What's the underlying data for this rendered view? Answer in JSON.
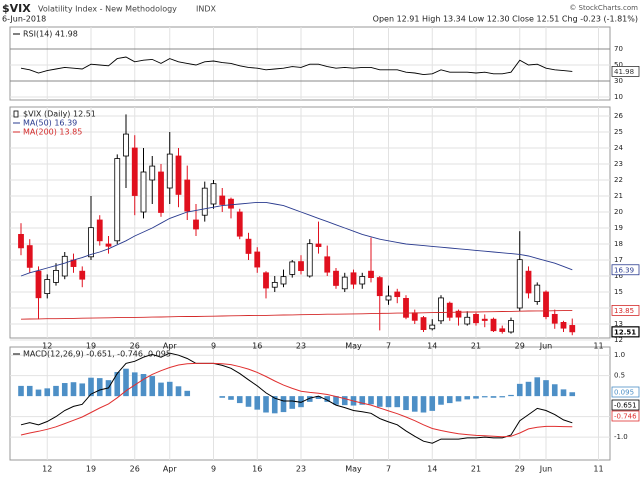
{
  "header": {
    "title": "$VIX",
    "subtitle": "Volatility Index - New Methodology",
    "exchange": "INDX",
    "date": "6-Jun-2018",
    "source": "© StockCharts.com",
    "quote": "Open 12.91 High 13.34 Low 12.30 Close 12.51 Chg -0.23 (-1.81%)"
  },
  "chart_data": [
    {
      "type": "line",
      "ylim": [
        6.25,
        97.5
      ],
      "yticks": [
        10,
        30,
        50,
        70
      ],
      "levels": [
        30,
        70
      ],
      "grid": true,
      "series": [
        {
          "label": "RSI(14) 41.98",
          "color": "#000000",
          "values": [
            46,
            44,
            40,
            43,
            45,
            47,
            46,
            45,
            51,
            50,
            49,
            58,
            60,
            54,
            56,
            57,
            52,
            58,
            54,
            52,
            50,
            54,
            55,
            53,
            52,
            49,
            47,
            46,
            44,
            45,
            46,
            48,
            47,
            51,
            51,
            48,
            46,
            47,
            46,
            47,
            47,
            44,
            44,
            44,
            41,
            40,
            38,
            39,
            44,
            41,
            41,
            41,
            40,
            41,
            39,
            39,
            41,
            56,
            50,
            51,
            46,
            44,
            43,
            41.98
          ]
        }
      ]
    },
    {
      "type": "candlestick",
      "label": "$VIX (Daily) 12.51",
      "xlim": [
        -1.257,
        67.314
      ],
      "xticks": [
        {
          "value": 3,
          "label": "12"
        },
        {
          "value": 8,
          "label": "19"
        },
        {
          "value": 13,
          "label": "26"
        },
        {
          "value": 17,
          "label": "Apr"
        },
        {
          "value": 22,
          "label": "9"
        },
        {
          "value": 27,
          "label": "16"
        },
        {
          "value": 32,
          "label": "23"
        },
        {
          "value": 38,
          "label": "May"
        },
        {
          "value": 42,
          "label": "7"
        },
        {
          "value": 47,
          "label": "14"
        },
        {
          "value": 52,
          "label": "21"
        },
        {
          "value": 57,
          "label": "29"
        },
        {
          "value": 60,
          "label": "Jun"
        },
        {
          "value": 66,
          "label": "11"
        }
      ],
      "ylim": [
        12.125,
        26.5625
      ],
      "yticks": [
        12,
        13,
        14,
        15,
        16,
        17,
        18,
        19,
        20,
        21,
        22,
        23,
        24,
        25,
        26
      ],
      "grid": true,
      "up_color": "#000000",
      "down_color": "#e0101e",
      "open": [
        18.6,
        17.9,
        16.3,
        14.9,
        15.6,
        16.0,
        17.0,
        16.3,
        17.2,
        19.5,
        18.0,
        18.2,
        23.5,
        24.0,
        20.0,
        22.0,
        22.5,
        21.5,
        23.5,
        22.0,
        19.5,
        19.8,
        20.5,
        21.0,
        20.8,
        20.0,
        18.3,
        17.5,
        16.2,
        15.3,
        15.5,
        16.1,
        16.9,
        16.0,
        18.0,
        17.2,
        16.3,
        15.2,
        16.2,
        15.5,
        16.3,
        15.9,
        14.5,
        15.0,
        14.6,
        13.7,
        13.4,
        12.7,
        13.2,
        14.3,
        13.8,
        13.0,
        13.6,
        13.3,
        13.3,
        12.7,
        12.5,
        14.0,
        16.3,
        14.4,
        15.0,
        13.6,
        13.1,
        12.91
      ],
      "high": [
        19.3,
        18.3,
        16.6,
        16.1,
        16.8,
        17.5,
        17.4,
        16.6,
        21.0,
        19.8,
        18.5,
        23.6,
        26.1,
        24.8,
        24.0,
        23.5,
        23.0,
        25.0,
        24.0,
        22.9,
        20.5,
        21.9,
        22.0,
        21.5,
        20.9,
        20.2,
        18.7,
        17.8,
        16.3,
        16.0,
        16.4,
        17.0,
        17.3,
        18.3,
        19.4,
        17.9,
        16.5,
        16.2,
        16.4,
        16.2,
        18.4,
        16.0,
        15.4,
        15.2,
        14.8,
        13.9,
        13.5,
        13.3,
        14.8,
        14.4,
        13.9,
        13.8,
        13.7,
        13.6,
        13.4,
        12.9,
        13.4,
        18.8,
        16.6,
        15.6,
        15.1,
        13.9,
        13.2,
        13.34
      ],
      "low": [
        17.3,
        16.2,
        13.3,
        14.6,
        15.4,
        15.8,
        16.2,
        15.3,
        17.0,
        17.9,
        17.4,
        18.0,
        21.5,
        19.8,
        19.6,
        20.5,
        19.7,
        20.5,
        20.3,
        19.5,
        18.5,
        19.4,
        20.2,
        20.0,
        19.6,
        18.3,
        17.0,
        16.2,
        14.6,
        15.0,
        15.3,
        15.9,
        16.1,
        15.9,
        17.4,
        16.0,
        15.2,
        15.0,
        15.2,
        15.2,
        15.6,
        12.6,
        14.2,
        14.3,
        13.3,
        13.0,
        12.5,
        12.6,
        13.0,
        13.2,
        12.9,
        12.9,
        12.9,
        12.8,
        12.5,
        12.4,
        12.4,
        13.8,
        14.6,
        14.2,
        13.3,
        12.7,
        12.5,
        12.3
      ],
      "close": [
        17.76,
        16.54,
        14.64,
        15.78,
        16.35,
        17.23,
        16.59,
        15.8,
        19.02,
        18.2,
        17.86,
        23.34,
        24.87,
        21.03,
        22.5,
        22.87,
        19.97,
        23.62,
        21.1,
        20.06,
        18.94,
        21.49,
        21.77,
        20.47,
        20.24,
        18.49,
        17.41,
        16.56,
        15.25,
        15.6,
        15.96,
        16.88,
        16.34,
        18.02,
        17.84,
        16.24,
        15.41,
        15.93,
        15.49,
        15.97,
        15.9,
        14.77,
        14.75,
        14.71,
        13.42,
        13.23,
        12.65,
        12.93,
        14.63,
        13.42,
        13.43,
        13.42,
        13.08,
        13.22,
        12.58,
        12.53,
        13.22,
        17.02,
        14.94,
        15.43,
        13.46,
        13.05,
        12.74,
        12.51
      ],
      "series": [
        {
          "label": "MA(50) 16.39",
          "color": "#2a3b8f",
          "values": [
            16.0,
            16.2,
            16.35,
            16.5,
            16.65,
            16.8,
            17.0,
            17.15,
            17.35,
            17.5,
            17.7,
            17.95,
            18.2,
            18.5,
            18.75,
            19.0,
            19.3,
            19.6,
            19.8,
            20.0,
            20.1,
            20.2,
            20.3,
            20.4,
            20.45,
            20.5,
            20.55,
            20.6,
            20.6,
            20.5,
            20.4,
            20.2,
            20.0,
            19.8,
            19.6,
            19.4,
            19.2,
            19.0,
            18.8,
            18.6,
            18.45,
            18.3,
            18.2,
            18.1,
            18.0,
            17.95,
            17.9,
            17.85,
            17.8,
            17.75,
            17.7,
            17.65,
            17.6,
            17.55,
            17.5,
            17.45,
            17.4,
            17.35,
            17.25,
            17.1,
            16.95,
            16.8,
            16.6,
            16.39
          ]
        },
        {
          "label": "MA(200) 13.85",
          "color": "#d42a2a",
          "values": [
            13.3,
            13.31,
            13.32,
            13.33,
            13.33,
            13.34,
            13.35,
            13.36,
            13.37,
            13.38,
            13.39,
            13.4,
            13.4,
            13.41,
            13.42,
            13.43,
            13.44,
            13.45,
            13.46,
            13.47,
            13.47,
            13.48,
            13.49,
            13.5,
            13.51,
            13.52,
            13.53,
            13.54,
            13.54,
            13.55,
            13.56,
            13.57,
            13.58,
            13.59,
            13.6,
            13.61,
            13.61,
            13.62,
            13.63,
            13.64,
            13.65,
            13.66,
            13.67,
            13.68,
            13.68,
            13.69,
            13.7,
            13.71,
            13.72,
            13.73,
            13.74,
            13.75,
            13.75,
            13.76,
            13.77,
            13.78,
            13.79,
            13.8,
            13.81,
            13.82,
            13.82,
            13.83,
            13.84,
            13.85
          ]
        }
      ]
    },
    {
      "type": "macd",
      "label": "MACD(12,26,9) -0.651, -0.746, 0.095",
      "ylim": [
        -1.56,
        1.2
      ],
      "yticks": [
        {
          "value": 1,
          "label": "1.0"
        },
        {
          "value": 0.5,
          "label": "0.5"
        },
        {
          "value": -0.5,
          "label": "-0.5"
        },
        {
          "value": -1,
          "label": "-1.0"
        }
      ],
      "grid": true,
      "series": [
        {
          "style": "histogram",
          "color": "#4d8fc6",
          "values": [
            0.25,
            0.25,
            0.16,
            0.19,
            0.25,
            0.32,
            0.34,
            0.31,
            0.45,
            0.44,
            0.39,
            0.59,
            0.67,
            0.58,
            0.54,
            0.49,
            0.33,
            0.35,
            0.24,
            0.13,
            0,
            0,
            0,
            -0.04,
            -0.09,
            -0.17,
            -0.26,
            -0.33,
            -0.4,
            -0.42,
            -0.39,
            -0.31,
            -0.27,
            -0.14,
            -0.07,
            -0.14,
            -0.21,
            -0.22,
            -0.23,
            -0.21,
            -0.2,
            -0.26,
            -0.27,
            -0.27,
            -0.34,
            -0.38,
            -0.4,
            -0.36,
            -0.21,
            -0.17,
            -0.13,
            -0.08,
            -0.06,
            -0.03,
            -0.04,
            -0.03,
            0.03,
            0.3,
            0.35,
            0.46,
            0.39,
            0.29,
            0.165,
            0.095
          ]
        },
        {
          "style": "line",
          "color": "#000000",
          "values": [
            -0.7,
            -0.65,
            -0.7,
            -0.62,
            -0.5,
            -0.35,
            -0.25,
            -0.2,
            0.05,
            0.15,
            0.2,
            0.55,
            0.8,
            0.85,
            0.95,
            1.02,
            0.95,
            1.05,
            1.0,
            0.92,
            0.8,
            0.8,
            0.8,
            0.75,
            0.68,
            0.55,
            0.4,
            0.25,
            0.08,
            -0.05,
            -0.12,
            -0.12,
            -0.15,
            -0.05,
            0.0,
            -0.1,
            -0.22,
            -0.28,
            -0.35,
            -0.38,
            -0.42,
            -0.55,
            -0.63,
            -0.7,
            -0.85,
            -0.98,
            -1.1,
            -1.15,
            -1.05,
            -1.05,
            -1.05,
            -1.02,
            -1.02,
            -1.0,
            -1.02,
            -1.02,
            -0.95,
            -0.6,
            -0.45,
            -0.3,
            -0.35,
            -0.45,
            -0.58,
            -0.651
          ]
        },
        {
          "style": "line",
          "color": "#e03030",
          "values": [
            -0.95,
            -0.9,
            -0.86,
            -0.81,
            -0.75,
            -0.67,
            -0.59,
            -0.51,
            -0.4,
            -0.29,
            -0.19,
            -0.04,
            0.13,
            0.27,
            0.41,
            0.53,
            0.62,
            0.7,
            0.76,
            0.79,
            0.8,
            0.8,
            0.8,
            0.79,
            0.77,
            0.72,
            0.66,
            0.58,
            0.48,
            0.37,
            0.27,
            0.19,
            0.12,
            0.09,
            0.07,
            0.04,
            -0.01,
            -0.06,
            -0.12,
            -0.17,
            -0.22,
            -0.29,
            -0.36,
            -0.43,
            -0.51,
            -0.6,
            -0.7,
            -0.79,
            -0.84,
            -0.88,
            -0.92,
            -0.94,
            -0.96,
            -0.97,
            -0.98,
            -0.99,
            -0.98,
            -0.9,
            -0.8,
            -0.76,
            -0.74,
            -0.74,
            -0.745,
            -0.746
          ]
        }
      ]
    }
  ]
}
